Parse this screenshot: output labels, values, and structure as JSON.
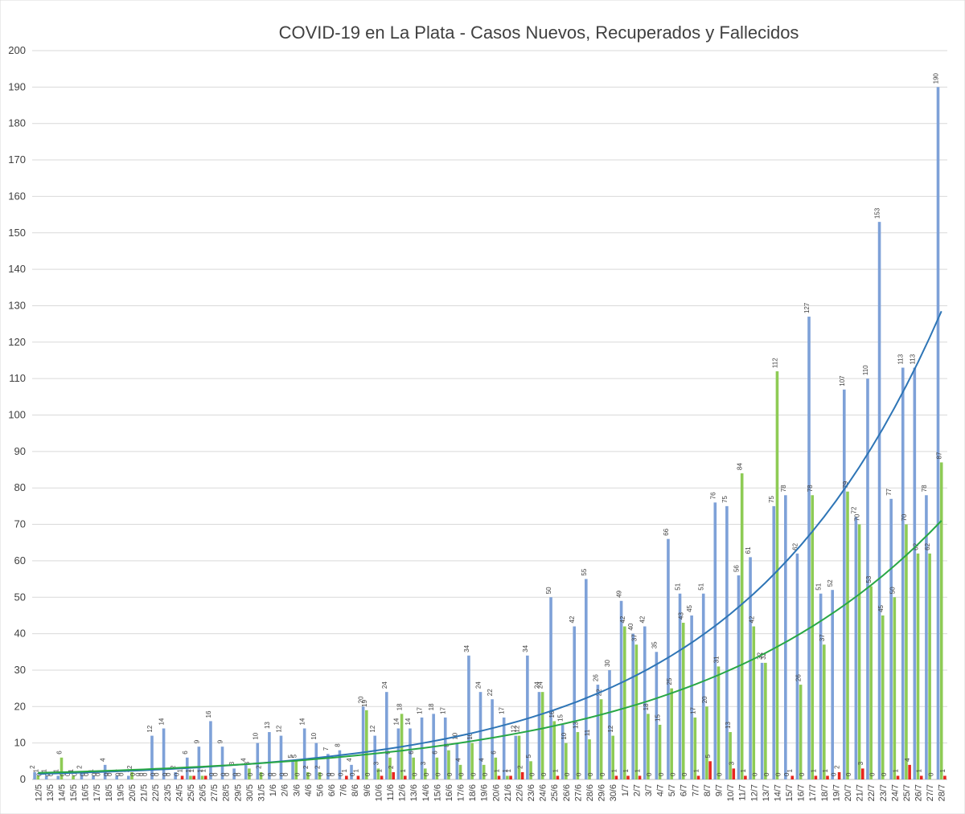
{
  "chart_data": {
    "type": "bar",
    "title": "COVID-19 en La Plata - Casos Nuevos, Recuperados y Fallecidos",
    "xlabel": "",
    "ylabel": "",
    "ylim": [
      0,
      200
    ],
    "yticks": [
      0,
      10,
      20,
      30,
      40,
      50,
      60,
      70,
      80,
      90,
      100,
      110,
      120,
      130,
      140,
      150,
      160,
      170,
      180,
      190,
      200
    ],
    "grid": true,
    "legend": "none",
    "categories": [
      "12/5",
      "13/5",
      "14/5",
      "15/5",
      "16/5",
      "17/5",
      "18/5",
      "19/5",
      "20/5",
      "21/5",
      "22/5",
      "23/5",
      "24/5",
      "25/5",
      "26/5",
      "27/5",
      "28/5",
      "29/5",
      "30/5",
      "31/5",
      "1/6",
      "2/6",
      "3/6",
      "4/6",
      "5/6",
      "6/6",
      "7/6",
      "8/6",
      "9/6",
      "10/6",
      "11/6",
      "12/6",
      "13/6",
      "14/6",
      "15/6",
      "16/6",
      "17/6",
      "18/6",
      "19/6",
      "20/6",
      "21/6",
      "22/6",
      "23/6",
      "24/6",
      "25/6",
      "26/6",
      "27/6",
      "28/6",
      "29/6",
      "30/6",
      "1/7",
      "2/7",
      "3/7",
      "4/7",
      "5/7",
      "6/7",
      "7/7",
      "8/7",
      "9/7",
      "10/7",
      "11/7",
      "12/7",
      "13/7",
      "14/7",
      "15/7",
      "16/7",
      "17/7",
      "18/7",
      "19/7",
      "20/7",
      "21/7",
      "22/7",
      "23/7",
      "24/7",
      "25/7",
      "26/7",
      "27/7",
      "28/7"
    ],
    "x_label_every": 1,
    "series": [
      {
        "color": "#7ea1d8",
        "values": [
          2,
          1,
          1,
          0,
          2,
          1,
          4,
          1,
          1,
          0,
          12,
          14,
          2,
          6,
          9,
          16,
          9,
          3,
          4,
          10,
          13,
          12,
          5,
          14,
          10,
          7,
          8,
          4,
          20,
          12,
          24,
          14,
          14,
          17,
          18,
          17,
          10,
          34,
          24,
          22,
          17,
          12,
          34,
          24,
          50,
          15,
          42,
          55,
          26,
          30,
          49,
          40,
          42,
          35,
          66,
          51,
          45,
          51,
          76,
          75,
          56,
          61,
          32,
          75,
          78,
          62,
          127,
          51,
          52,
          107,
          72,
          110,
          153,
          77,
          113,
          113,
          78,
          190
        ]
      },
      {
        "color": "#8ecb55",
        "values": [
          1,
          0,
          6,
          1,
          0,
          0,
          0,
          0,
          2,
          0,
          0,
          0,
          0,
          1,
          1,
          0,
          0,
          0,
          3,
          2,
          0,
          0,
          5,
          2,
          2,
          0,
          0,
          0,
          19,
          3,
          6,
          18,
          6,
          3,
          6,
          8,
          4,
          10,
          4,
          6,
          1,
          12,
          5,
          24,
          16,
          10,
          13,
          11,
          22,
          12,
          42,
          37,
          18,
          15,
          25,
          43,
          17,
          20,
          31,
          13,
          84,
          42,
          32,
          112,
          0,
          26,
          78,
          37,
          0,
          79,
          70,
          53,
          45,
          50,
          70,
          62,
          62,
          87
        ]
      },
      {
        "color": "#e8261e",
        "values": [
          0,
          0,
          0,
          0,
          0,
          0,
          0,
          0,
          0,
          0,
          0,
          0,
          1,
          1,
          1,
          0,
          0,
          0,
          0,
          0,
          0,
          0,
          0,
          0,
          0,
          0,
          1,
          1,
          0,
          1,
          2,
          1,
          0,
          0,
          0,
          0,
          0,
          0,
          0,
          1,
          1,
          2,
          0,
          0,
          1,
          0,
          0,
          0,
          0,
          1,
          1,
          1,
          0,
          0,
          0,
          0,
          1,
          5,
          0,
          3,
          1,
          0,
          0,
          0,
          1,
          0,
          1,
          1,
          2,
          0,
          3,
          0,
          0,
          1,
          4,
          1,
          0,
          1
        ]
      }
    ],
    "trendlines": [
      {
        "type": "exponential",
        "color": "#2e75b6",
        "values_start_end": [
          1.5,
          128.5
        ]
      },
      {
        "type": "exponential",
        "color": "#28a745",
        "values_start_end": [
          1.8,
          71
        ]
      }
    ]
  }
}
